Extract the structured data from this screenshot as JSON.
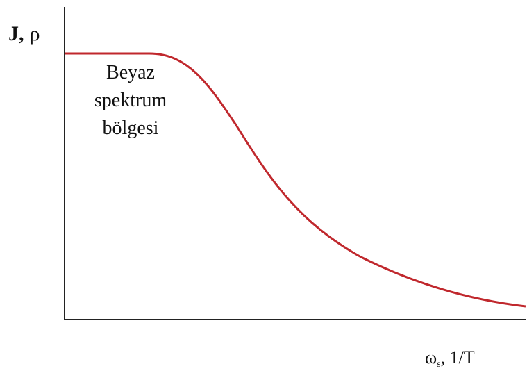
{
  "y_label": {
    "symbol": "J,",
    "rest": "ρ"
  },
  "annotation": [
    "Beyaz",
    "spektrum",
    "bölgesi"
  ],
  "x_label": {
    "symbol": "ω",
    "subscript": "s",
    "rest": ", 1/T"
  }
}
